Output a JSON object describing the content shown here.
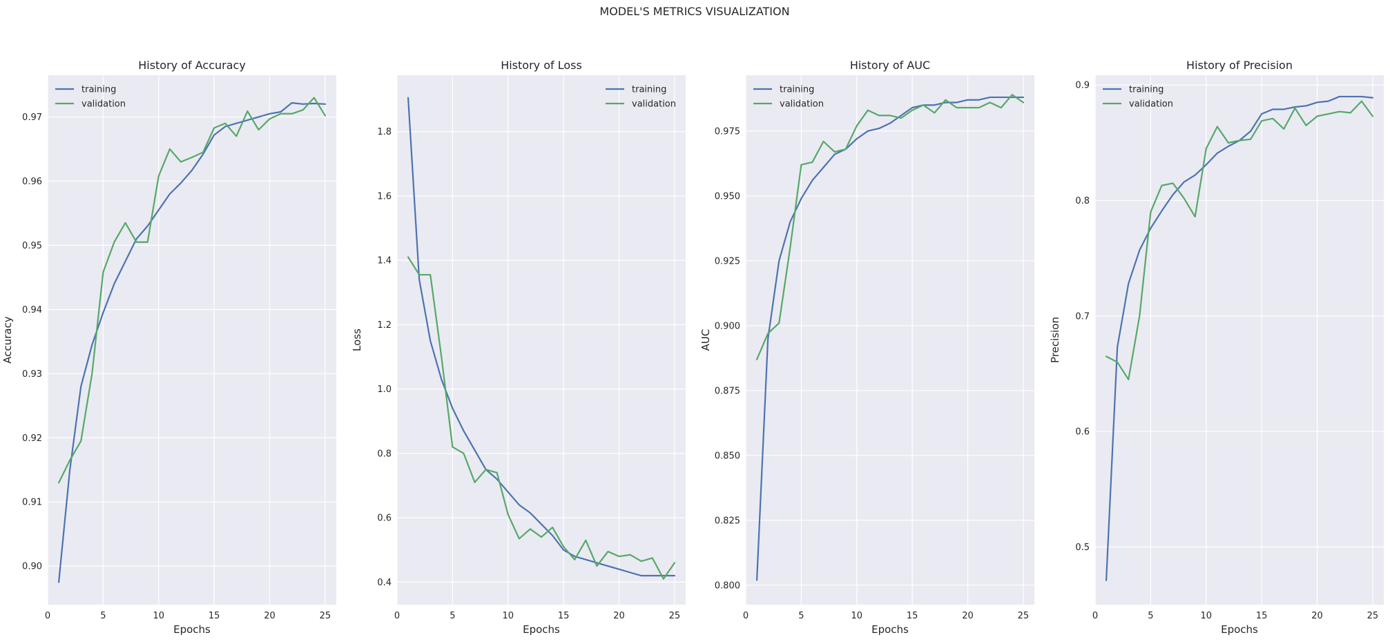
{
  "figure": {
    "title": "MODEL'S METRICS VISUALIZATION"
  },
  "colors": {
    "training": "#4c72b0",
    "validation": "#55a868"
  },
  "chart_data": [
    {
      "type": "line",
      "title": "History of Accuracy",
      "xlabel": "Epochs",
      "ylabel": "Accuracy",
      "xlim": [
        0,
        26
      ],
      "ylim": [
        0.894,
        0.9765
      ],
      "xticks": [
        0,
        5,
        10,
        15,
        20,
        25
      ],
      "yticks": [
        0.9,
        0.91,
        0.92,
        0.93,
        0.94,
        0.95,
        0.96,
        0.97
      ],
      "ytick_labels": [
        "0.90",
        "0.91",
        "0.92",
        "0.93",
        "0.94",
        "0.95",
        "0.96",
        "0.97"
      ],
      "legend_position": "upper-left",
      "x": [
        1,
        2,
        3,
        4,
        5,
        6,
        7,
        8,
        9,
        10,
        11,
        12,
        13,
        14,
        15,
        16,
        17,
        18,
        19,
        20,
        21,
        22,
        23,
        24,
        25
      ],
      "series": [
        {
          "name": "training",
          "values": [
            0.8975,
            0.915,
            0.928,
            0.9345,
            0.9395,
            0.944,
            0.9475,
            0.951,
            0.953,
            0.9555,
            0.958,
            0.9597,
            0.9617,
            0.9642,
            0.9672,
            0.9685,
            0.969,
            0.9695,
            0.97,
            0.9705,
            0.9708,
            0.9722,
            0.972,
            0.9721,
            0.972
          ]
        },
        {
          "name": "validation",
          "values": [
            0.913,
            0.9165,
            0.9195,
            0.93,
            0.9458,
            0.9505,
            0.9535,
            0.9505,
            0.9505,
            0.9608,
            0.965,
            0.963,
            0.9637,
            0.9645,
            0.9683,
            0.969,
            0.967,
            0.9709,
            0.968,
            0.9697,
            0.9705,
            0.9705,
            0.9711,
            0.973,
            0.9702
          ]
        }
      ]
    },
    {
      "type": "line",
      "title": "History of Loss",
      "xlabel": "Epochs",
      "ylabel": "Loss",
      "xlim": [
        0,
        26
      ],
      "ylim": [
        0.33,
        1.975
      ],
      "xticks": [
        0,
        5,
        10,
        15,
        20,
        25
      ],
      "yticks": [
        0.4,
        0.6,
        0.8,
        1.0,
        1.2,
        1.4,
        1.6,
        1.8
      ],
      "ytick_labels": [
        "0.4",
        "0.6",
        "0.8",
        "1.0",
        "1.2",
        "1.4",
        "1.6",
        "1.8"
      ],
      "legend_position": "upper-right",
      "x": [
        1,
        2,
        3,
        4,
        5,
        6,
        7,
        8,
        9,
        10,
        11,
        12,
        13,
        14,
        15,
        16,
        17,
        18,
        19,
        20,
        21,
        22,
        23,
        24,
        25
      ],
      "series": [
        {
          "name": "training",
          "values": [
            1.905,
            1.34,
            1.15,
            1.03,
            0.94,
            0.87,
            0.81,
            0.75,
            0.72,
            0.68,
            0.64,
            0.615,
            0.58,
            0.545,
            0.5,
            0.48,
            0.47,
            0.46,
            0.45,
            0.44,
            0.43,
            0.42,
            0.42,
            0.42,
            0.42
          ]
        },
        {
          "name": "validation",
          "values": [
            1.41,
            1.355,
            1.355,
            1.1,
            0.82,
            0.8,
            0.71,
            0.75,
            0.74,
            0.61,
            0.535,
            0.565,
            0.54,
            0.57,
            0.51,
            0.47,
            0.53,
            0.45,
            0.495,
            0.48,
            0.485,
            0.465,
            0.475,
            0.41,
            0.46
          ]
        }
      ]
    },
    {
      "type": "line",
      "title": "History of AUC",
      "xlabel": "Epochs",
      "ylabel": "AUC",
      "xlim": [
        0,
        26
      ],
      "ylim": [
        0.7925,
        0.9965
      ],
      "xticks": [
        0,
        5,
        10,
        15,
        20,
        25
      ],
      "yticks": [
        0.8,
        0.825,
        0.85,
        0.875,
        0.9,
        0.925,
        0.95,
        0.975
      ],
      "ytick_labels": [
        "0.800",
        "0.825",
        "0.850",
        "0.875",
        "0.900",
        "0.925",
        "0.950",
        "0.975"
      ],
      "legend_position": "upper-left",
      "x": [
        1,
        2,
        3,
        4,
        5,
        6,
        7,
        8,
        9,
        10,
        11,
        12,
        13,
        14,
        15,
        16,
        17,
        18,
        19,
        20,
        21,
        22,
        23,
        24,
        25
      ],
      "series": [
        {
          "name": "training",
          "values": [
            0.802,
            0.895,
            0.925,
            0.94,
            0.949,
            0.956,
            0.961,
            0.966,
            0.968,
            0.972,
            0.975,
            0.976,
            0.978,
            0.981,
            0.984,
            0.985,
            0.985,
            0.986,
            0.986,
            0.987,
            0.987,
            0.988,
            0.988,
            0.988,
            0.988
          ]
        },
        {
          "name": "validation",
          "values": [
            0.887,
            0.897,
            0.901,
            0.93,
            0.962,
            0.963,
            0.971,
            0.967,
            0.968,
            0.977,
            0.983,
            0.981,
            0.981,
            0.98,
            0.983,
            0.985,
            0.982,
            0.987,
            0.984,
            0.984,
            0.984,
            0.986,
            0.984,
            0.989,
            0.986
          ]
        }
      ]
    },
    {
      "type": "line",
      "title": "History of Precision",
      "xlabel": "Epochs",
      "ylabel": "Precision",
      "xlim": [
        0,
        26
      ],
      "ylim": [
        0.45,
        0.9085
      ],
      "xticks": [
        0,
        5,
        10,
        15,
        20,
        25
      ],
      "yticks": [
        0.5,
        0.6,
        0.7,
        0.8,
        0.9
      ],
      "ytick_labels": [
        "0.5",
        "0.6",
        "0.7",
        "0.8",
        "0.9"
      ],
      "legend_position": "upper-left",
      "x": [
        1,
        2,
        3,
        4,
        5,
        6,
        7,
        8,
        9,
        10,
        11,
        12,
        13,
        14,
        15,
        16,
        17,
        18,
        19,
        20,
        21,
        22,
        23,
        24,
        25
      ],
      "series": [
        {
          "name": "training",
          "values": [
            0.471,
            0.673,
            0.728,
            0.757,
            0.776,
            0.791,
            0.805,
            0.816,
            0.822,
            0.831,
            0.841,
            0.847,
            0.852,
            0.86,
            0.875,
            0.879,
            0.879,
            0.881,
            0.882,
            0.885,
            0.886,
            0.89,
            0.89,
            0.89,
            0.889
          ]
        },
        {
          "name": "validation",
          "values": [
            0.665,
            0.66,
            0.645,
            0.7,
            0.79,
            0.813,
            0.815,
            0.802,
            0.786,
            0.845,
            0.864,
            0.85,
            0.852,
            0.853,
            0.869,
            0.871,
            0.862,
            0.88,
            0.865,
            0.873,
            0.875,
            0.877,
            0.876,
            0.886,
            0.873
          ]
        }
      ]
    }
  ]
}
